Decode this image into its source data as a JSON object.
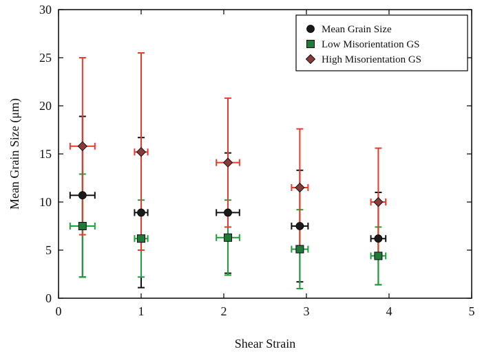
{
  "chart_data": {
    "type": "scatter",
    "title": "",
    "xlabel": "Shear Strain",
    "ylabel": "Mean Grain Size (μm)",
    "xlim": [
      0,
      5
    ],
    "ylim": [
      0,
      30
    ],
    "xticks": [
      0,
      1,
      2,
      3,
      4,
      5
    ],
    "yticks": [
      0,
      5,
      10,
      15,
      20,
      25,
      30
    ],
    "grid": false,
    "legend_position": "top-right",
    "series": [
      {
        "name": "Mean Grain Size",
        "marker": "circle",
        "color": "#1a1a1a",
        "error_color": "#111111",
        "points": [
          {
            "x": 0.29,
            "y": 10.7,
            "xerr": 0.15,
            "ylow": 2.2,
            "yhigh": 18.9
          },
          {
            "x": 1.0,
            "y": 8.9,
            "xerr": 0.08,
            "ylow": 1.1,
            "yhigh": 16.7
          },
          {
            "x": 2.05,
            "y": 8.9,
            "xerr": 0.14,
            "ylow": 2.6,
            "yhigh": 15.1
          },
          {
            "x": 2.92,
            "y": 7.5,
            "xerr": 0.1,
            "ylow": 1.7,
            "yhigh": 13.3
          },
          {
            "x": 3.87,
            "y": 6.2,
            "xerr": 0.09,
            "ylow": 1.4,
            "yhigh": 11.0
          }
        ]
      },
      {
        "name": "Low Misorientation GS",
        "marker": "square",
        "color": "#1f7a3a",
        "error_color": "#1f9e3a",
        "points": [
          {
            "x": 0.29,
            "y": 7.5,
            "xerr": 0.15,
            "ylow": 2.2,
            "yhigh": 12.9
          },
          {
            "x": 1.0,
            "y": 6.2,
            "xerr": 0.08,
            "ylow": 2.2,
            "yhigh": 10.2
          },
          {
            "x": 2.05,
            "y": 6.3,
            "xerr": 0.14,
            "ylow": 2.4,
            "yhigh": 10.2
          },
          {
            "x": 2.92,
            "y": 5.1,
            "xerr": 0.1,
            "ylow": 1.0,
            "yhigh": 9.2
          },
          {
            "x": 3.87,
            "y": 4.4,
            "xerr": 0.09,
            "ylow": 1.4,
            "yhigh": 7.4
          }
        ]
      },
      {
        "name": "High Misorientation GS",
        "marker": "diamond",
        "color": "#8b3a3a",
        "error_color": "#e8392b",
        "points": [
          {
            "x": 0.29,
            "y": 15.8,
            "xerr": 0.15,
            "ylow": 6.6,
            "yhigh": 25.0
          },
          {
            "x": 1.0,
            "y": 15.2,
            "xerr": 0.08,
            "ylow": 5.0,
            "yhigh": 25.5
          },
          {
            "x": 2.05,
            "y": 14.1,
            "xerr": 0.14,
            "ylow": 7.4,
            "yhigh": 20.8
          },
          {
            "x": 2.92,
            "y": 11.5,
            "xerr": 0.1,
            "ylow": 5.4,
            "yhigh": 17.6
          },
          {
            "x": 3.87,
            "y": 10.0,
            "xerr": 0.09,
            "ylow": 4.5,
            "yhigh": 15.6
          }
        ]
      }
    ]
  }
}
